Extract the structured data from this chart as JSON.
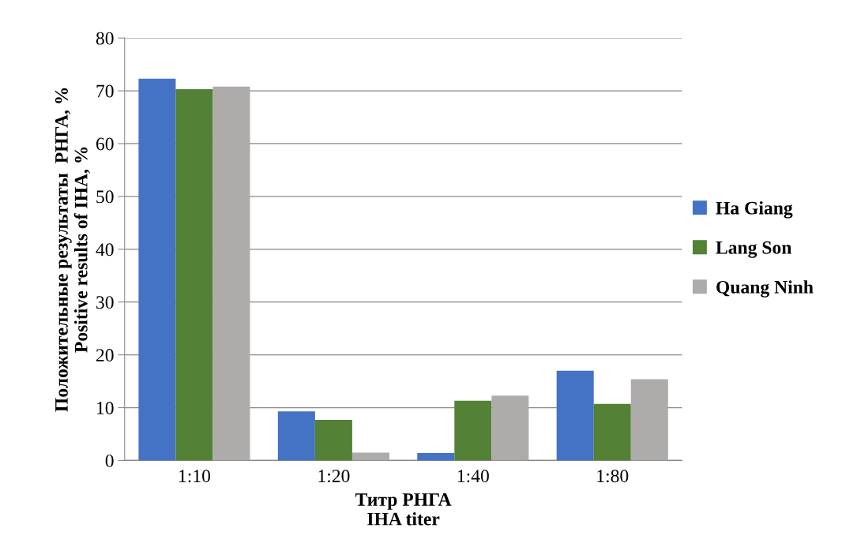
{
  "chart_data": {
    "type": "bar",
    "xlabel": "Титр РНГА\nIHA titer",
    "ylabel": "Положительные результаты  РНГА, %\nPositive results of IHA, %",
    "categories": [
      "1:10",
      "1:20",
      "1:40",
      "1:80"
    ],
    "series": [
      {
        "name": "Ha Giang",
        "color": "#4472c4",
        "values": [
          72.3,
          9.3,
          1.4,
          17.0
        ]
      },
      {
        "name": "Lang Son",
        "color": "#538135",
        "values": [
          70.3,
          7.7,
          11.3,
          10.7
        ]
      },
      {
        "name": "Quang Ninh",
        "color": "#aeabab",
        "values": [
          70.8,
          1.5,
          12.3,
          15.4
        ]
      }
    ],
    "ylim": [
      0,
      80
    ],
    "yticks": [
      0,
      10,
      20,
      30,
      40,
      50,
      60,
      70,
      80
    ],
    "grid": "y",
    "legend": "right"
  }
}
